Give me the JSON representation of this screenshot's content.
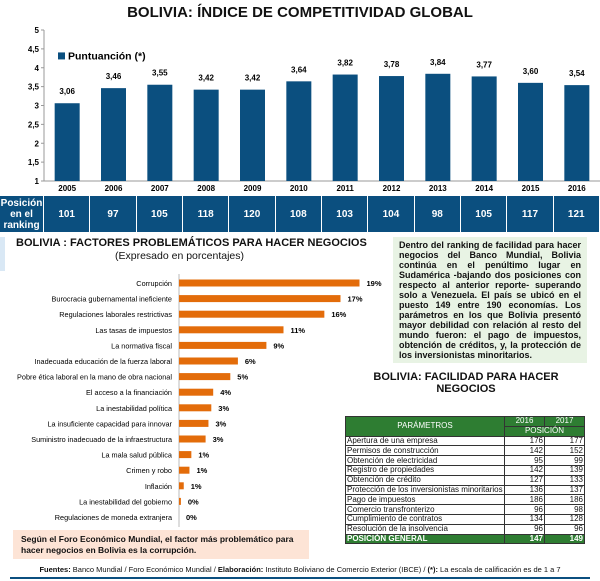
{
  "title": "BOLIVIA: ÍNDICE DE COMPETITIVIDAD GLOBAL",
  "colors": {
    "navy": "#0b4f7f",
    "orange": "#e36c0a",
    "green": "#2e7d32"
  },
  "chart_data": [
    {
      "type": "bar",
      "title": "BOLIVIA: ÍNDICE DE COMPETITIVIDAD GLOBAL",
      "categories": [
        "2005",
        "2006",
        "2007",
        "2008",
        "2009",
        "2010",
        "2011",
        "2012",
        "2013",
        "2014",
        "2015",
        "2016"
      ],
      "series": [
        {
          "name": "Puntuanción (*)",
          "values": [
            3.06,
            3.46,
            3.55,
            3.42,
            3.42,
            3.64,
            3.82,
            3.78,
            3.84,
            3.77,
            3.6,
            3.54
          ]
        }
      ],
      "data_labels": [
        "3,06",
        "3,46",
        "3,55",
        "3,42",
        "3,42",
        "3,64",
        "3,82",
        "3,78",
        "3,84",
        "3,77",
        "3,60",
        "3,54"
      ],
      "ylim": [
        1,
        5
      ],
      "yticks": [
        "1",
        "1,5",
        "2",
        "2,5",
        "3",
        "3,5",
        "4",
        "4,5",
        "5"
      ],
      "legend": "top-left",
      "grid": false
    },
    {
      "type": "bar",
      "orientation": "horizontal",
      "title": "BOLIVIA : FACTORES PROBLEMÁTICOS PARA HACER NEGOCIOS",
      "subtitle": "(Expresado en porcentajes)",
      "categories": [
        "Corrupción",
        "Burocracia gubernamental ineficiente",
        "Regulaciones laborales restrictivas",
        "Las tasas de impuestos",
        "La normativa fiscal",
        "Inadecuada educación de la fuerza laboral",
        "Pobre ética laboral en la mano de obra nacional",
        "El acceso a la financiación",
        "La inestabilidad política",
        "La insuficiente capacidad para innovar",
        "Suministro inadecuado de la infraestructura",
        "La mala salud pública",
        "Crimen y robo",
        "Inflación",
        "La inestabilidad del gobierno",
        "Regulaciones de moneda extranjera"
      ],
      "values": [
        19,
        17,
        16,
        11,
        9,
        6,
        5,
        4,
        3,
        3,
        3,
        1,
        1,
        1,
        0,
        0
      ],
      "bar_lengths_est": [
        19,
        17,
        15.3,
        11,
        9.2,
        6.2,
        5.4,
        3.6,
        3.4,
        3.1,
        2.8,
        1.3,
        1.1,
        0.5,
        0.2,
        0
      ],
      "data_labels": [
        "19%",
        "17%",
        "16%",
        "11%",
        "9%",
        "6%",
        "5%",
        "4%",
        "3%",
        "3%",
        "3%",
        "1%",
        "1%",
        "1%",
        "0%",
        "0%"
      ]
    }
  ],
  "ranking": {
    "label": "Posición en el ranking",
    "values": [
      "101",
      "97",
      "105",
      "118",
      "120",
      "108",
      "103",
      "104",
      "98",
      "105",
      "117",
      "121"
    ]
  },
  "factors_note": "Según el Foro Económico Mundial, el factor más problemático para hacer negocios en Bolivia es la corrupción.",
  "doing_business_text": "Dentro del ranking de facilidad para hacer negocios del Banco Mundial, Bolivia continúa en el penúltimo lugar en Sudamérica -bajando dos posiciones con respecto al anterior reporte- superando solo a Venezuela. El país se ubicó en el puesto 149 entre 190 economías. Los parámetros en los que Bolivia presentó mayor debilidad con relación al resto del mundo fueron: el pago de impuestos, obtención de créditos, y, la protección de los inversionistas minoritarios.",
  "table": {
    "title": "BOLIVIA: FACILIDAD PARA HACER NEGOCIOS",
    "header_param": "PARÁMETROS",
    "years": [
      "2016",
      "2017"
    ],
    "header_pos": "POSICIÓN",
    "rows": [
      [
        "Apertura de una empresa",
        "176",
        "177"
      ],
      [
        "Permisos de construcción",
        "142",
        "152"
      ],
      [
        "Obtención de electricidad",
        "95",
        "99"
      ],
      [
        "Registro de propiedades",
        "142",
        "139"
      ],
      [
        "Obtención de crédito",
        "127",
        "133"
      ],
      [
        "Protección de los inversionistas minoritarios",
        "136",
        "137"
      ],
      [
        "Pago de impuestos",
        "186",
        "186"
      ],
      [
        "Comercio transfronterizo",
        "96",
        "98"
      ],
      [
        "Cumplimiento de contratos",
        "134",
        "128"
      ],
      [
        "Resolución de la insolvencia",
        "96",
        "96"
      ]
    ],
    "general": [
      "POSICIÓN GENERAL",
      "147",
      "149"
    ]
  },
  "footer": {
    "b1": "Fuentes:",
    "t1": " Banco Mundial / Foro Económico Mundial / ",
    "b2": "Elaboración:",
    "t2": " Instituto Boliviano de Comercio Exterior (IBCE) / ",
    "b3": "(*):",
    "t3": " La escala de calificación es de 1 a 7"
  }
}
